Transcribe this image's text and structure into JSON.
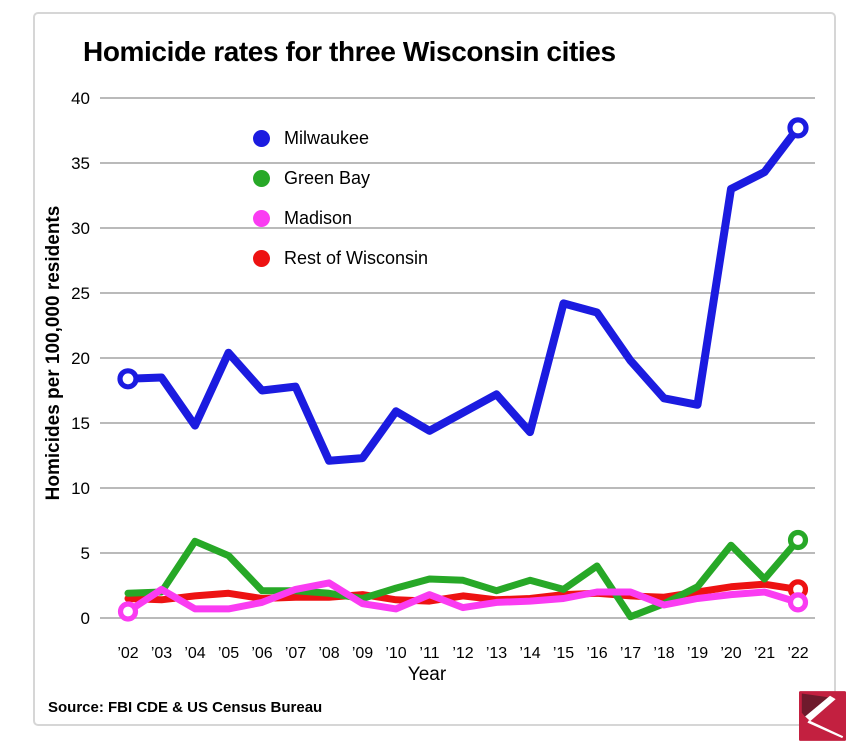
{
  "title": "Homicide rates for three Wisconsin cities",
  "source": "Source: FBI CDE & US Census Bureau",
  "colors": {
    "grid": "#a3a3a3",
    "card_border": "#d6d6d6",
    "text": "#000000",
    "logo_bg": "#c32040",
    "logo_dark": "#6e1a2c",
    "logo_fg": "#ffffff"
  },
  "chart_data": {
    "type": "line",
    "title": "Homicide rates for three Wisconsin cities",
    "xlabel": "Year",
    "ylabel": "Homicides per 100,000 residents",
    "ylim": [
      0,
      40
    ],
    "yticks": [
      0,
      5,
      10,
      15,
      20,
      25,
      30,
      35,
      40
    ],
    "grid": "horizontal-only",
    "legend_position": "inside-upper-left",
    "categories": [
      "’02",
      "’03",
      "’04",
      "’05",
      "’06",
      "’07",
      "’08",
      "’09",
      "’10",
      "’11",
      "’12",
      "’13",
      "’14",
      "’15",
      "’16",
      "’17",
      "’18",
      "’19",
      "’20",
      "’21",
      "’22"
    ],
    "years": [
      2002,
      2003,
      2004,
      2005,
      2006,
      2007,
      2008,
      2009,
      2010,
      2011,
      2012,
      2013,
      2014,
      2015,
      2016,
      2017,
      2018,
      2019,
      2020,
      2021,
      2022
    ],
    "series": [
      {
        "name": "Milwaukee",
        "color": "#1b1be0",
        "width": 8,
        "z": 4,
        "open_marker_first": true,
        "open_marker_last": true,
        "values": [
          18.4,
          18.5,
          14.8,
          20.4,
          17.5,
          17.8,
          12.1,
          12.3,
          15.9,
          14.4,
          15.8,
          17.2,
          14.3,
          24.2,
          23.5,
          19.8,
          16.9,
          16.4,
          33.0,
          34.3,
          37.7
        ]
      },
      {
        "name": "Green Bay",
        "color": "#27a827",
        "width": 7,
        "z": 2,
        "open_marker_first": false,
        "open_marker_last": true,
        "values": [
          1.9,
          2.0,
          5.9,
          4.8,
          2.1,
          2.1,
          1.9,
          1.5,
          2.3,
          3.0,
          2.9,
          2.1,
          2.9,
          2.2,
          4.0,
          0.1,
          1.1,
          2.4,
          5.6,
          3.0,
          6.0
        ]
      },
      {
        "name": "Madison",
        "color": "#fa3cf2",
        "width": 7,
        "z": 3,
        "open_marker_first": true,
        "open_marker_last": true,
        "values": [
          0.5,
          2.2,
          0.7,
          0.7,
          1.2,
          2.2,
          2.7,
          1.1,
          0.7,
          1.8,
          0.8,
          1.2,
          1.3,
          1.5,
          2.0,
          2.0,
          1.0,
          1.5,
          1.8,
          2.0,
          1.2
        ]
      },
      {
        "name": "Rest of Wisconsin",
        "color": "#ed1212",
        "width": 7,
        "z": 1,
        "open_marker_first": false,
        "open_marker_last": true,
        "values": [
          1.5,
          1.4,
          1.7,
          1.9,
          1.5,
          1.6,
          1.6,
          1.8,
          1.4,
          1.3,
          1.7,
          1.4,
          1.5,
          1.8,
          1.9,
          1.7,
          1.6,
          2.0,
          2.4,
          2.6,
          2.2
        ]
      }
    ]
  }
}
